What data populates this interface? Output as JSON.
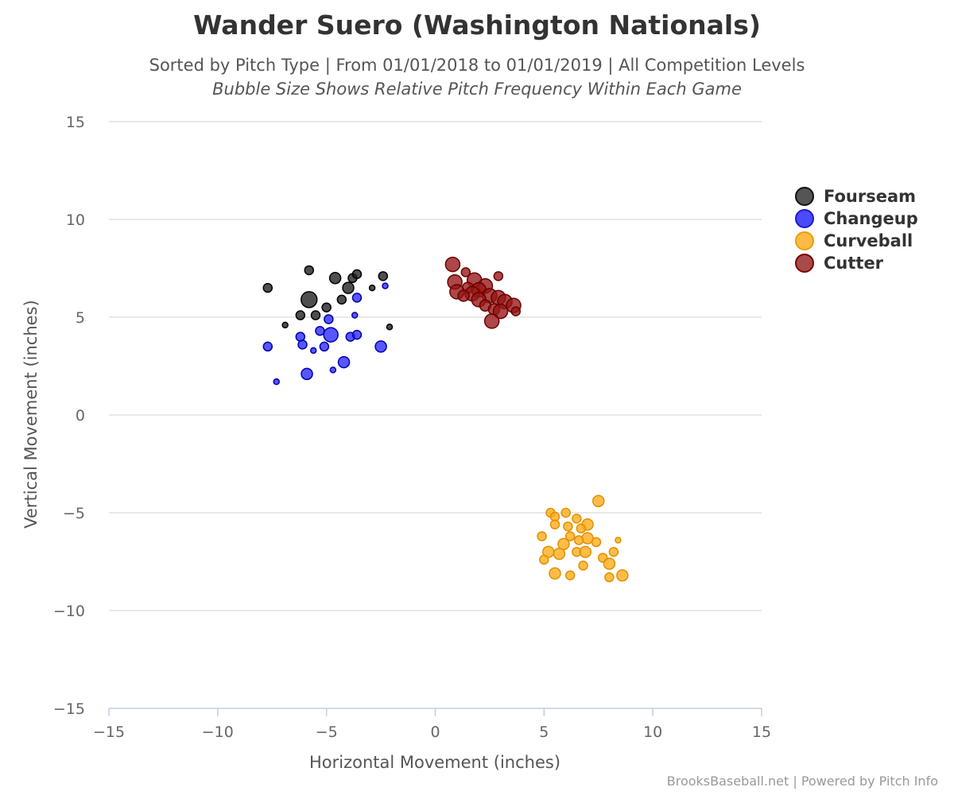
{
  "title": "Wander Suero (Washington Nationals)",
  "subtitle": "Sorted by Pitch Type | From 01/01/2018 to 01/01/2019 | All Competition Levels",
  "subtitle2": "Bubble Size Shows Relative Pitch Frequency Within Each Game",
  "credits": "BrooksBaseball.net | Powered by Pitch Info",
  "chart_data": {
    "type": "scatter",
    "xlabel": "Horizontal Movement (inches)",
    "ylabel": "Vertical Movement (inches)",
    "xlim": [
      -15,
      15
    ],
    "ylim": [
      -15,
      15
    ],
    "xticks": [
      -15,
      -10,
      -5,
      0,
      5,
      10,
      15
    ],
    "yticks": [
      -15,
      -10,
      -5,
      0,
      5,
      10,
      15
    ],
    "x_tick_labels": [
      "−15",
      "−10",
      "−5",
      "0",
      "5",
      "10",
      "15"
    ],
    "y_tick_labels": [
      "−15",
      "−10",
      "−5",
      "0",
      "5",
      "10",
      "15"
    ],
    "grid": "horizontal",
    "legend_position": "right",
    "series": [
      {
        "name": "Fourseam",
        "color": "#333333",
        "points": [
          [
            -7.7,
            6.5,
            2
          ],
          [
            -5.8,
            7.4,
            2
          ],
          [
            -5.8,
            5.9,
            5
          ],
          [
            -4.6,
            7.0,
            3
          ],
          [
            -3.8,
            7.0,
            2
          ],
          [
            -3.6,
            7.2,
            2
          ],
          [
            -2.4,
            7.1,
            2
          ],
          [
            -4.0,
            6.5,
            3
          ],
          [
            -2.9,
            6.5,
            1
          ],
          [
            -4.3,
            5.9,
            2
          ],
          [
            -5.0,
            5.5,
            2
          ],
          [
            -6.2,
            5.1,
            2
          ],
          [
            -5.5,
            5.1,
            2
          ],
          [
            -6.9,
            4.6,
            1
          ],
          [
            -2.1,
            4.5,
            1
          ]
        ]
      },
      {
        "name": "Changeup",
        "color": "#3333ff",
        "points": [
          [
            -2.3,
            6.6,
            1
          ],
          [
            -3.6,
            6.0,
            2
          ],
          [
            -3.7,
            5.1,
            1
          ],
          [
            -5.3,
            4.3,
            2
          ],
          [
            -4.9,
            4.9,
            2
          ],
          [
            -4.8,
            4.1,
            4
          ],
          [
            -3.9,
            4.0,
            2
          ],
          [
            -3.6,
            4.1,
            2
          ],
          [
            -6.2,
            4.0,
            2
          ],
          [
            -7.7,
            3.5,
            2
          ],
          [
            -6.1,
            3.6,
            2
          ],
          [
            -5.1,
            3.5,
            2
          ],
          [
            -5.6,
            3.3,
            1
          ],
          [
            -2.5,
            3.5,
            3
          ],
          [
            -4.2,
            2.7,
            3
          ],
          [
            -4.7,
            2.3,
            1
          ],
          [
            -5.9,
            2.1,
            3
          ],
          [
            -7.3,
            1.7,
            1
          ]
        ]
      },
      {
        "name": "Curveball",
        "color": "#ffaa11",
        "points": [
          [
            7.5,
            -4.4,
            3
          ],
          [
            6.0,
            -5.0,
            2
          ],
          [
            5.3,
            -5.0,
            2
          ],
          [
            5.5,
            -5.2,
            2
          ],
          [
            6.5,
            -5.3,
            2
          ],
          [
            5.5,
            -5.6,
            2
          ],
          [
            6.1,
            -5.7,
            2
          ],
          [
            7.0,
            -5.6,
            3
          ],
          [
            6.7,
            -5.8,
            2
          ],
          [
            4.9,
            -6.2,
            2
          ],
          [
            6.2,
            -6.2,
            2
          ],
          [
            7.0,
            -6.3,
            3
          ],
          [
            6.6,
            -6.4,
            2
          ],
          [
            7.4,
            -6.5,
            2
          ],
          [
            8.4,
            -6.4,
            1
          ],
          [
            5.9,
            -6.6,
            3
          ],
          [
            6.5,
            -7.0,
            2
          ],
          [
            5.2,
            -7.0,
            3
          ],
          [
            5.7,
            -7.1,
            3
          ],
          [
            6.9,
            -7.0,
            3
          ],
          [
            8.2,
            -7.0,
            2
          ],
          [
            5.0,
            -7.4,
            2
          ],
          [
            7.7,
            -7.3,
            2
          ],
          [
            8.0,
            -7.6,
            3
          ],
          [
            6.8,
            -7.7,
            2
          ],
          [
            5.5,
            -8.1,
            3
          ],
          [
            6.2,
            -8.2,
            2
          ],
          [
            8.0,
            -8.3,
            2
          ],
          [
            8.6,
            -8.2,
            3
          ]
        ]
      },
      {
        "name": "Cutter",
        "color": "#a02020",
        "points": [
          [
            0.8,
            7.7,
            4
          ],
          [
            1.4,
            7.3,
            2
          ],
          [
            2.9,
            7.1,
            2
          ],
          [
            0.9,
            6.8,
            4
          ],
          [
            1.8,
            6.9,
            4
          ],
          [
            2.3,
            6.6,
            4
          ],
          [
            1.5,
            6.5,
            3
          ],
          [
            2.0,
            6.4,
            4
          ],
          [
            1.0,
            6.3,
            4
          ],
          [
            1.7,
            6.2,
            4
          ],
          [
            2.5,
            6.1,
            4
          ],
          [
            2.9,
            6.0,
            4
          ],
          [
            1.3,
            6.1,
            3
          ],
          [
            2.0,
            5.9,
            4
          ],
          [
            3.2,
            5.8,
            4
          ],
          [
            2.3,
            5.6,
            3
          ],
          [
            3.6,
            5.6,
            4
          ],
          [
            2.7,
            5.4,
            3
          ],
          [
            3.0,
            5.3,
            4
          ],
          [
            3.7,
            5.3,
            2
          ],
          [
            2.6,
            4.8,
            4
          ]
        ]
      }
    ]
  }
}
